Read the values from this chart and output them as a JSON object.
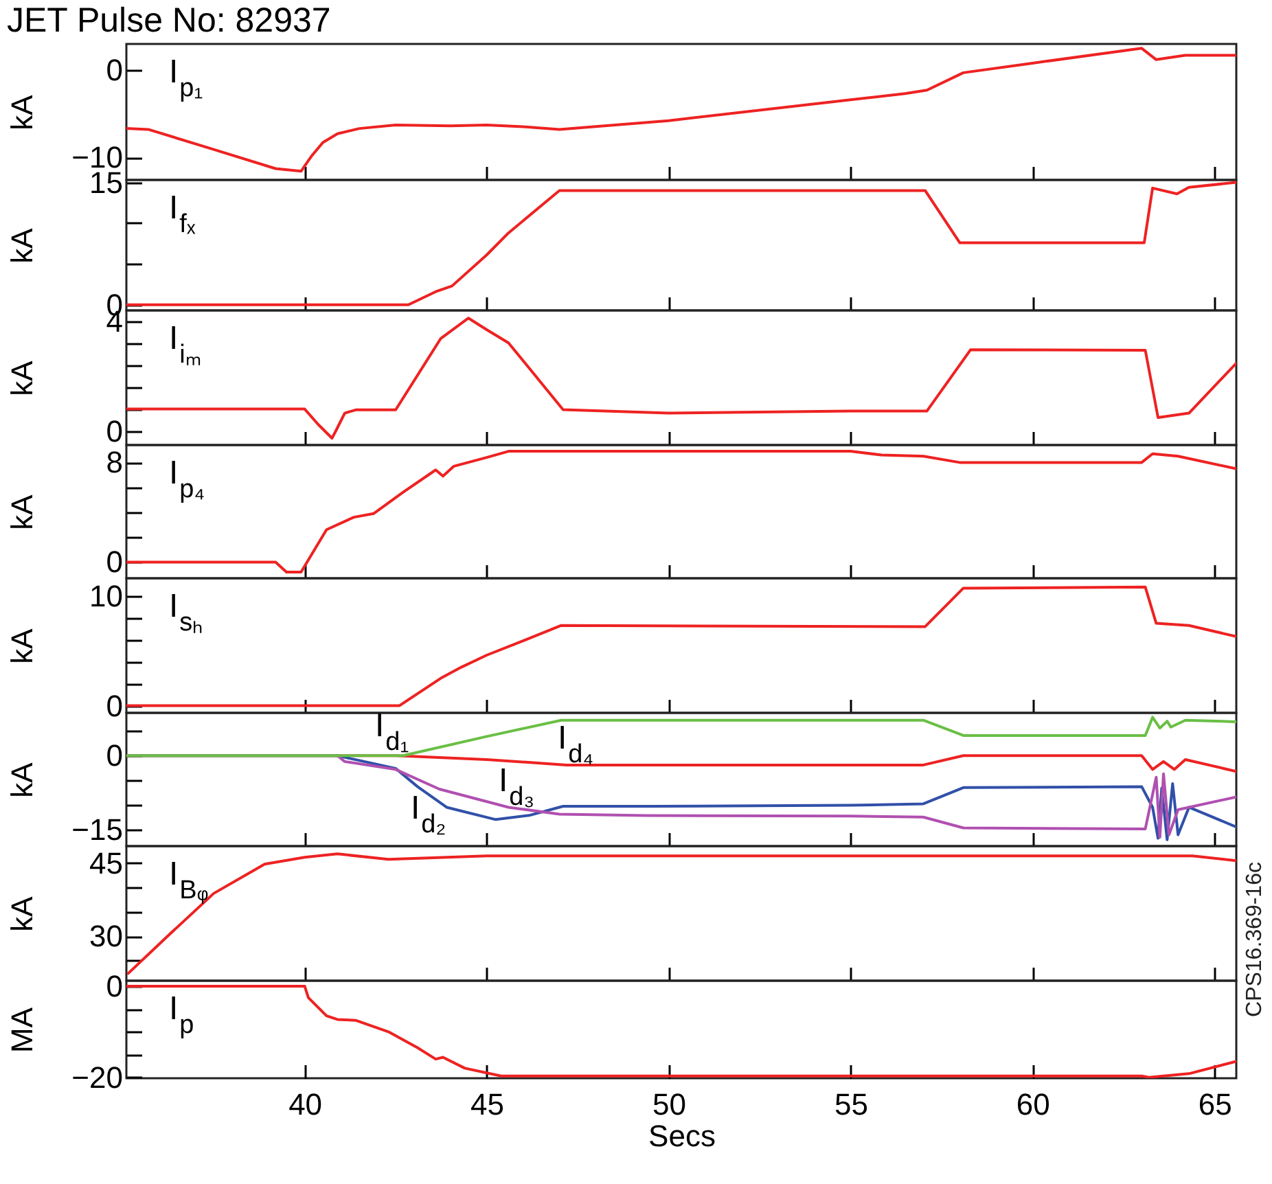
{
  "chart_data": [
    {
      "type": "line",
      "title": "JET Pulse No: 82937",
      "subtitle": "I$_{p₁}$",
      "ylabel": "kA",
      "xlim": [
        35.1,
        65.6
      ],
      "xticks": [
        40,
        45,
        50,
        55,
        60,
        65
      ],
      "ylim": [
        -12.6,
        3
      ],
      "yticks": [
        -10,
        0
      ],
      "tick_labels": "y",
      "series": [
        {
          "color": "#ee2222",
          "x": [
            35.1,
            35.7,
            37.5,
            39.2,
            39.9,
            40.0,
            40.2,
            40.5,
            40.9,
            41.5,
            42.5,
            44,
            45,
            46,
            47,
            50,
            55,
            56.5,
            57.1,
            58.1,
            60,
            63,
            63.4,
            64.2,
            65.6
          ],
          "values": [
            -6.7,
            -6.8,
            -9.1,
            -11.3,
            -11.6,
            -11.0,
            -9.8,
            -8.3,
            -7.3,
            -6.7,
            -6.3,
            -6.4,
            -6.3,
            -6.5,
            -6.8,
            -5.8,
            -3.4,
            -2.7,
            -2.3,
            -0.3,
            0.8,
            2.5,
            1.2,
            1.7,
            1.7
          ]
        }
      ]
    },
    {
      "type": "line",
      "title": "I$_{fₓ}$",
      "ylabel": "kA",
      "xlim": [
        35.1,
        65.6
      ],
      "xticks": [
        40,
        45,
        50,
        55,
        60,
        65
      ],
      "ylim": [
        -0.7,
        15.3
      ],
      "yticks": [
        0,
        {
          "value": 5,
          "label": null
        },
        {
          "value": 10,
          "label": null
        },
        15
      ],
      "tick_labels": "y",
      "series": [
        {
          "color": "#ee2222",
          "x": [
            35.1,
            42.85,
            43.6,
            44.05,
            45,
            45.6,
            47,
            57.05,
            58,
            63.07,
            63.3,
            63.97,
            64.3,
            65.6
          ],
          "values": [
            0,
            0,
            1.6,
            2.3,
            6.1,
            8.8,
            14.0,
            14.0,
            7.6,
            7.6,
            14.3,
            13.6,
            14.4,
            15.0
          ]
        }
      ]
    },
    {
      "type": "line",
      "title": "I$_{iₘ}$",
      "ylabel": "kA",
      "xlim": [
        35.1,
        65.6
      ],
      "xticks": [
        40,
        45,
        50,
        55,
        60,
        65
      ],
      "ylim": [
        -0.5,
        4.4
      ],
      "yticks": [
        0,
        {
          "value": 0.8,
          "label": null
        },
        {
          "value": 1.6,
          "label": null
        },
        {
          "value": 2.4,
          "label": null
        },
        {
          "value": 3.2,
          "label": null
        },
        4
      ],
      "tick_labels": "y",
      "series": [
        {
          "color": "#ee2222",
          "x": [
            35.1,
            40,
            40.37,
            40.75,
            40.85,
            41.1,
            41.4,
            42.5,
            43.74,
            44.5,
            45,
            45.6,
            47.1,
            50,
            55,
            57.1,
            58.3,
            63.1,
            63.45,
            64.3,
            65.6
          ],
          "values": [
            0.81,
            0.81,
            0.25,
            -0.25,
            0.0,
            0.66,
            0.78,
            0.78,
            3.38,
            4.12,
            3.7,
            3.22,
            0.79,
            0.66,
            0.74,
            0.74,
            2.97,
            2.95,
            0.5,
            0.66,
            2.48
          ]
        }
      ]
    },
    {
      "type": "line",
      "title": "I$_{p₄}$",
      "ylabel": "kA",
      "xlim": [
        35.1,
        65.6
      ],
      "xticks": [
        40,
        45,
        50,
        55,
        60,
        65
      ],
      "ylim": [
        -1.3,
        9.4
      ],
      "yticks": [
        0,
        {
          "value": 2,
          "label": null
        },
        {
          "value": 4,
          "label": null
        },
        {
          "value": 6,
          "label": null
        },
        8
      ],
      "tick_labels": "y",
      "series": [
        {
          "color": "#ee2222",
          "x": [
            35.1,
            39.2,
            39.5,
            39.9,
            40.6,
            41.35,
            41.9,
            42.7,
            43.6,
            43.8,
            44.1,
            45,
            45.6,
            55,
            55.85,
            57,
            58,
            63,
            63.3,
            64,
            65.6
          ],
          "values": [
            0,
            0,
            -0.8,
            -0.8,
            2.6,
            3.6,
            3.9,
            5.6,
            7.4,
            6.9,
            7.7,
            8.4,
            8.9,
            8.9,
            8.6,
            8.5,
            8.0,
            8.0,
            8.7,
            8.5,
            7.5
          ]
        }
      ]
    },
    {
      "type": "line",
      "title": "I$_{sₕ}$",
      "ylabel": "kA",
      "xlim": [
        35.1,
        65.6
      ],
      "xticks": [
        40,
        45,
        50,
        55,
        60,
        65
      ],
      "ylim": [
        -0.65,
        11.6
      ],
      "yticks": [
        0,
        {
          "value": 2,
          "label": null
        },
        {
          "value": 4,
          "label": null
        },
        {
          "value": 6,
          "label": null
        },
        {
          "value": 8,
          "label": null
        },
        10
      ],
      "tick_labels": "y",
      "series": [
        {
          "color": "#ee2222",
          "x": [
            35.1,
            42.6,
            43.74,
            44.3,
            45,
            46,
            47.04,
            57.05,
            58.1,
            63.1,
            63.4,
            64.3,
            65.6
          ],
          "values": [
            0,
            0,
            2.5,
            3.5,
            4.6,
            5.9,
            7.3,
            7.2,
            10.7,
            10.8,
            7.5,
            7.3,
            6.3
          ]
        }
      ]
    },
    {
      "type": "line",
      "ylabel": "kA",
      "xlim": [
        35.1,
        65.6
      ],
      "xticks": [
        40,
        45,
        50,
        55,
        60,
        65
      ],
      "ylim": [
        -18.4,
        8.7
      ],
      "yticks": [
        -15,
        {
          "value": -10,
          "label": null
        },
        {
          "value": -5,
          "label": null
        },
        0,
        {
          "value": 5,
          "label": null
        }
      ],
      "tick_labels": "y",
      "series": [
        {
          "name": "I$_{d₁}$",
          "color": "#ee2222",
          "x": [
            35.1,
            42.5,
            45,
            47.2,
            57,
            58.1,
            63,
            63.3,
            63.6,
            63.9,
            64.2,
            65.6
          ],
          "values": [
            0,
            0,
            -0.8,
            -1.9,
            -1.9,
            0,
            0,
            -2.8,
            -1.2,
            -2.8,
            -0.8,
            -3.2
          ]
        },
        {
          "name": "I$_{d₂}$",
          "color": "#3050a8",
          "x": [
            35.1,
            40.9,
            42.5,
            43.1,
            43.9,
            45.25,
            46.2,
            47.1,
            49.5,
            55,
            57,
            58.1,
            63,
            63.3,
            63.45,
            63.55,
            63.7,
            63.85,
            64,
            64.3,
            65.6
          ],
          "values": [
            0,
            0,
            -2.6,
            -6.3,
            -10.5,
            -13.0,
            -12.1,
            -10.3,
            -10.3,
            -10.1,
            -9.8,
            -6.5,
            -6.3,
            -10.5,
            -16.8,
            -6.6,
            -17.1,
            -5.7,
            -16.1,
            -10.5,
            -14.5
          ]
        },
        {
          "name": "I$_{d₃}$",
          "color": "#b050b0",
          "x": [
            35.1,
            40.9,
            41.1,
            42.5,
            43.7,
            45.6,
            47,
            49.4,
            55,
            57,
            58.1,
            63.1,
            63.4,
            63.5,
            63.6,
            63.75,
            64,
            65.6
          ],
          "values": [
            0,
            0,
            -1.2,
            -2.8,
            -6.8,
            -10.5,
            -11.9,
            -12.2,
            -12.3,
            -12.5,
            -14.7,
            -14.9,
            -4.4,
            -16.6,
            -3.7,
            -16.1,
            -11.0,
            -8.4
          ]
        },
        {
          "name": "I$_{d₄}$",
          "color": "#6abf45",
          "x": [
            35.1,
            42.7,
            45,
            47.05,
            57,
            58.1,
            63.1,
            63.3,
            63.5,
            63.7,
            63.8,
            64.2,
            65.6
          ],
          "values": [
            0,
            0,
            3.9,
            7.2,
            7.2,
            4.1,
            4.1,
            7.8,
            5.6,
            7.0,
            5.8,
            7.2,
            6.9
          ]
        }
      ]
    },
    {
      "type": "line",
      "title": "I$_{Bᵩ}$",
      "ylabel": "kA",
      "xlim": [
        35.1,
        65.6
      ],
      "xticks": [
        40,
        45,
        50,
        55,
        60,
        65
      ],
      "ylim": [
        20.9,
        48.5
      ],
      "yticks": [
        {
          "value": 25,
          "label": null
        },
        30,
        {
          "value": 35,
          "label": null
        },
        {
          "value": 40,
          "label": null
        },
        45
      ],
      "tick_labels": "y",
      "series": [
        {
          "color": "#ee2222",
          "x": [
            35.15,
            36.3,
            37.5,
            38.9,
            40,
            40.9,
            42.3,
            45,
            64.4,
            65.6
          ],
          "values": [
            22.4,
            30.5,
            38.8,
            44.8,
            46.2,
            46.9,
            45.8,
            46.5,
            46.5,
            45.5
          ]
        }
      ]
    },
    {
      "type": "line",
      "title": "I$_{p}$",
      "ylabel": "MA",
      "xlabel": "Secs",
      "xlim": [
        35.1,
        65.6
      ],
      "xticks": [
        40,
        45,
        50,
        55,
        60,
        65
      ],
      "ylim": [
        -20.2,
        1.2
      ],
      "yticks": [
        -20,
        {
          "value": -15,
          "label": null
        },
        {
          "value": -10,
          "label": null
        },
        {
          "value": -5,
          "label": null
        },
        0
      ],
      "annotations": [
        "CPS16.369-16c"
      ],
      "series": [
        {
          "color": "#ee2222",
          "x": [
            35.1,
            40,
            40.1,
            40.6,
            40.9,
            41.4,
            42.3,
            43.1,
            43.6,
            43.8,
            44.4,
            45.4,
            63.0,
            63.2,
            64.3,
            65.6
          ],
          "values": [
            0,
            0,
            -2.5,
            -6.5,
            -7.3,
            -7.5,
            -10.0,
            -13.5,
            -16.0,
            -15.6,
            -18,
            -19.7,
            -19.7,
            -20,
            -19.2,
            -16.5
          ]
        }
      ]
    }
  ]
}
